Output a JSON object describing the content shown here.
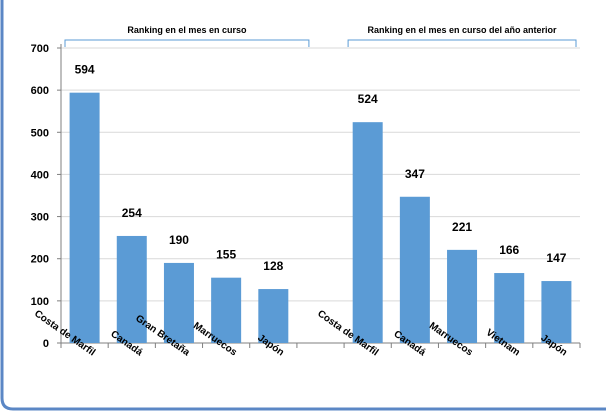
{
  "chart_data": {
    "type": "bar",
    "groups": [
      {
        "label": "Ranking en el mes en curso",
        "categories": [
          "Costa de Marfil",
          "Canadá",
          "Gran Bretaña",
          "Marruecos",
          "Japón"
        ],
        "values": [
          594,
          254,
          190,
          155,
          128
        ]
      },
      {
        "label": "Ranking en el mes en curso del año anterior",
        "categories": [
          "Costa de Marfil",
          "Canadá",
          "Marruecos",
          "Vietnam",
          "Japón"
        ],
        "values": [
          524,
          347,
          221,
          166,
          147
        ]
      }
    ],
    "y_ticks": [
      "0",
      "100",
      "200",
      "300",
      "400",
      "500",
      "600",
      "700"
    ],
    "ylim": [
      0,
      700
    ],
    "grid": true,
    "bar_color": "#5b9bd5",
    "bracket_color": "#5b9bd5",
    "frame_color": "#5b87c5"
  }
}
